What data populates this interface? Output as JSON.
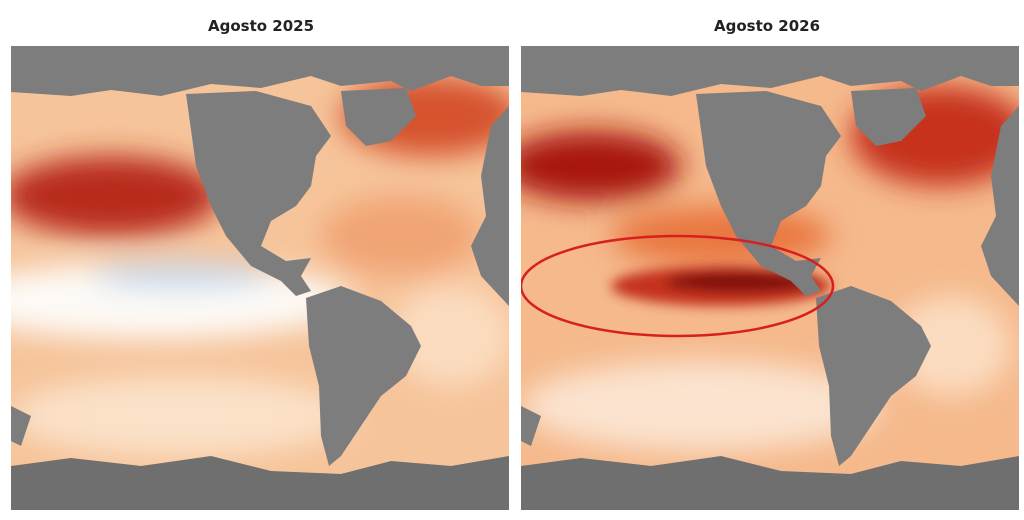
{
  "panels": [
    {
      "title": "Agosto 2025"
    },
    {
      "title": "Agosto 2026"
    }
  ]
}
